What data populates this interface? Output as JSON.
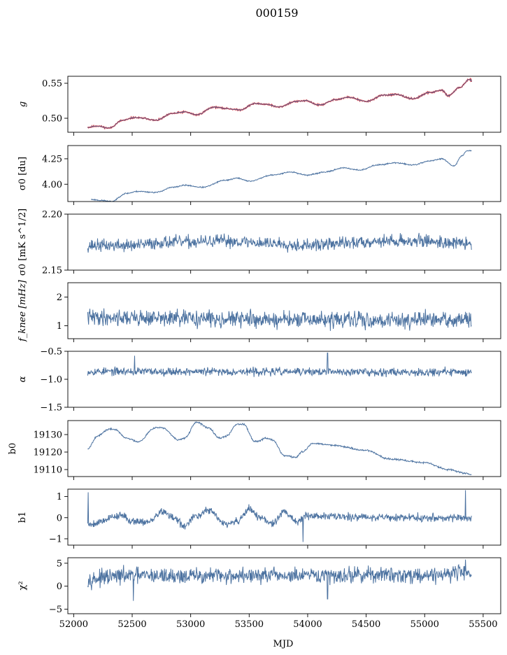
{
  "figure": {
    "title": "000159",
    "xlabel": "MJD",
    "xlim": [
      51950,
      55650
    ],
    "xticks": [
      52000,
      52500,
      53000,
      53500,
      54000,
      54500,
      55000,
      55500
    ],
    "colors": {
      "series": "#4c72a0",
      "highlight": "#ff0000"
    }
  },
  "chart_data": [
    {
      "type": "line",
      "ylabel": "g",
      "ylim": [
        0.48,
        0.56
      ],
      "yticks": [
        0.5,
        0.55
      ],
      "ytick_labels": [
        "0.50",
        "0.55"
      ],
      "x_start": 52120,
      "x_end": 55400,
      "noise": 0.0005,
      "seed": 11,
      "trend": [
        [
          52120,
          0.487
        ],
        [
          52200,
          0.489
        ],
        [
          52300,
          0.486
        ],
        [
          52420,
          0.497
        ],
        [
          52520,
          0.501
        ],
        [
          52600,
          0.5
        ],
        [
          52700,
          0.497
        ],
        [
          52850,
          0.507
        ],
        [
          52950,
          0.509
        ],
        [
          53050,
          0.505
        ],
        [
          53200,
          0.516
        ],
        [
          53300,
          0.514
        ],
        [
          53420,
          0.512
        ],
        [
          53550,
          0.521
        ],
        [
          53650,
          0.52
        ],
        [
          53750,
          0.516
        ],
        [
          53900,
          0.524
        ],
        [
          53980,
          0.525
        ],
        [
          54100,
          0.519
        ],
        [
          54250,
          0.527
        ],
        [
          54350,
          0.53
        ],
        [
          54500,
          0.524
        ],
        [
          54650,
          0.533
        ],
        [
          54750,
          0.534
        ],
        [
          54900,
          0.528
        ],
        [
          55050,
          0.537
        ],
        [
          55150,
          0.54
        ],
        [
          55200,
          0.532
        ],
        [
          55300,
          0.544
        ],
        [
          55380,
          0.555
        ],
        [
          55450,
          0.547
        ]
      ],
      "highlight": true
    },
    {
      "type": "line",
      "ylabel": "σ0 [du]",
      "ylim": [
        3.83,
        4.38
      ],
      "yticks": [
        4.0,
        4.25
      ],
      "ytick_labels": [
        "4.00",
        "4.25"
      ],
      "x_start": 52150,
      "x_end": 55400,
      "noise": 0.003,
      "seed": 23,
      "trend": [
        [
          52150,
          3.85
        ],
        [
          52250,
          3.84
        ],
        [
          52320,
          3.83
        ],
        [
          52450,
          3.91
        ],
        [
          52550,
          3.93
        ],
        [
          52700,
          3.92
        ],
        [
          52850,
          3.97
        ],
        [
          52950,
          3.99
        ],
        [
          53100,
          3.97
        ],
        [
          53300,
          4.04
        ],
        [
          53400,
          4.06
        ],
        [
          53500,
          4.03
        ],
        [
          53700,
          4.09
        ],
        [
          53850,
          4.12
        ],
        [
          54000,
          4.09
        ],
        [
          54150,
          4.12
        ],
        [
          54300,
          4.16
        ],
        [
          54450,
          4.14
        ],
        [
          54600,
          4.19
        ],
        [
          54750,
          4.21
        ],
        [
          54900,
          4.19
        ],
        [
          55050,
          4.23
        ],
        [
          55150,
          4.25
        ],
        [
          55250,
          4.18
        ],
        [
          55320,
          4.28
        ],
        [
          55360,
          4.33
        ],
        [
          55400,
          4.33
        ]
      ]
    },
    {
      "type": "line",
      "ylabel": "σ0 [mK s^1/2]",
      "ylim": [
        2.15,
        2.2
      ],
      "yticks": [
        2.15,
        2.2
      ],
      "ytick_labels": [
        "2.15",
        "2.20"
      ],
      "x_start": 52120,
      "x_end": 55400,
      "noise": 0.0028,
      "seed": 37,
      "trend": [
        [
          52120,
          2.172
        ],
        [
          52500,
          2.172
        ],
        [
          52800,
          2.175
        ],
        [
          53000,
          2.175
        ],
        [
          53300,
          2.176
        ],
        [
          53700,
          2.174
        ],
        [
          54000,
          2.172
        ],
        [
          54300,
          2.174
        ],
        [
          54600,
          2.176
        ],
        [
          55000,
          2.176
        ],
        [
          55300,
          2.174
        ],
        [
          55400,
          2.173
        ]
      ]
    },
    {
      "type": "line",
      "ylabel": "f_knee [mHz]",
      "ylim": [
        0.55,
        2.5
      ],
      "yticks": [
        1,
        2
      ],
      "ytick_labels": [
        "1",
        "2"
      ],
      "x_start": 52120,
      "x_end": 55400,
      "noise": 0.14,
      "seed": 41,
      "trend": [
        [
          52120,
          1.3
        ],
        [
          53000,
          1.25
        ],
        [
          54000,
          1.2
        ],
        [
          55400,
          1.2
        ]
      ]
    },
    {
      "type": "line",
      "ylabel": "α",
      "ylim": [
        -1.5,
        -0.5
      ],
      "yticks": [
        -1.5,
        -1.0,
        -0.5
      ],
      "ytick_labels": [
        "−1.5",
        "−1.0",
        "−0.5"
      ],
      "x_start": 52120,
      "x_end": 55400,
      "noise": 0.035,
      "seed": 53,
      "trend": [
        [
          52120,
          -0.86
        ],
        [
          55400,
          -0.87
        ]
      ],
      "spikes": [
        [
          52520,
          -0.58
        ],
        [
          54170,
          -0.53
        ]
      ]
    },
    {
      "type": "line",
      "ylabel": "b0",
      "ylim": [
        19106,
        19138
      ],
      "yticks": [
        19110,
        19120,
        19130
      ],
      "ytick_labels": [
        "19110",
        "19120",
        "19130"
      ],
      "x_start": 52120,
      "x_end": 55400,
      "noise": 0.25,
      "seed": 67,
      "trend": [
        [
          52120,
          19122
        ],
        [
          52200,
          19129
        ],
        [
          52300,
          19133
        ],
        [
          52350,
          19133
        ],
        [
          52450,
          19128
        ],
        [
          52550,
          19126
        ],
        [
          52700,
          19134
        ],
        [
          52750,
          19134
        ],
        [
          52900,
          19127
        ],
        [
          52950,
          19128
        ],
        [
          53050,
          19137
        ],
        [
          53150,
          19134
        ],
        [
          53250,
          19128
        ],
        [
          53300,
          19129
        ],
        [
          53400,
          19136
        ],
        [
          53450,
          19136
        ],
        [
          53550,
          19126
        ],
        [
          53650,
          19128
        ],
        [
          53700,
          19127
        ],
        [
          53800,
          19118
        ],
        [
          53900,
          19117
        ],
        [
          53950,
          19120
        ],
        [
          54050,
          19125
        ],
        [
          54200,
          19124
        ],
        [
          54500,
          19121
        ],
        [
          54700,
          19116
        ],
        [
          55000,
          19114
        ],
        [
          55200,
          19110
        ],
        [
          55350,
          19108
        ],
        [
          55400,
          19107
        ]
      ]
    },
    {
      "type": "line",
      "ylabel": "b1",
      "ylim": [
        -1.3,
        1.35
      ],
      "yticks": [
        -1,
        0,
        1
      ],
      "ytick_labels": [
        "−1",
        "0",
        "1"
      ],
      "x_start": 52120,
      "x_end": 55400,
      "noise": 0.09,
      "seed": 79,
      "trend": [
        [
          52130,
          -0.3
        ],
        [
          52400,
          0.1
        ],
        [
          52500,
          -0.15
        ],
        [
          52650,
          -0.2
        ],
        [
          52750,
          0.3
        ],
        [
          52850,
          0.0
        ],
        [
          52950,
          -0.4
        ],
        [
          53050,
          0.1
        ],
        [
          53150,
          0.35
        ],
        [
          53300,
          -0.3
        ],
        [
          53400,
          -0.2
        ],
        [
          53500,
          0.4
        ],
        [
          53600,
          0.0
        ],
        [
          53700,
          -0.3
        ],
        [
          53800,
          0.3
        ],
        [
          53900,
          -0.2
        ],
        [
          54000,
          0.1
        ],
        [
          54300,
          0.05
        ],
        [
          55000,
          0.0
        ],
        [
          55400,
          0.0
        ]
      ],
      "spikes": [
        [
          52125,
          1.2
        ],
        [
          53960,
          -1.15
        ],
        [
          55350,
          1.3
        ]
      ]
    },
    {
      "type": "line",
      "ylabel": "χ²",
      "ylim": [
        -6,
        6.2
      ],
      "yticks": [
        -5,
        0,
        5
      ],
      "ytick_labels": [
        "−5",
        "0",
        "5"
      ],
      "x_start": 52120,
      "x_end": 55400,
      "noise": 0.85,
      "seed": 97,
      "trend": [
        [
          52120,
          1.6
        ],
        [
          52500,
          2.3
        ],
        [
          53000,
          2.2
        ],
        [
          53500,
          2.3
        ],
        [
          54000,
          2.2
        ],
        [
          54500,
          2.5
        ],
        [
          55000,
          2.4
        ],
        [
          55400,
          3.2
        ]
      ],
      "spikes": [
        [
          52510,
          -3.2
        ],
        [
          54170,
          -2.8
        ],
        [
          55350,
          5.8
        ]
      ]
    }
  ]
}
